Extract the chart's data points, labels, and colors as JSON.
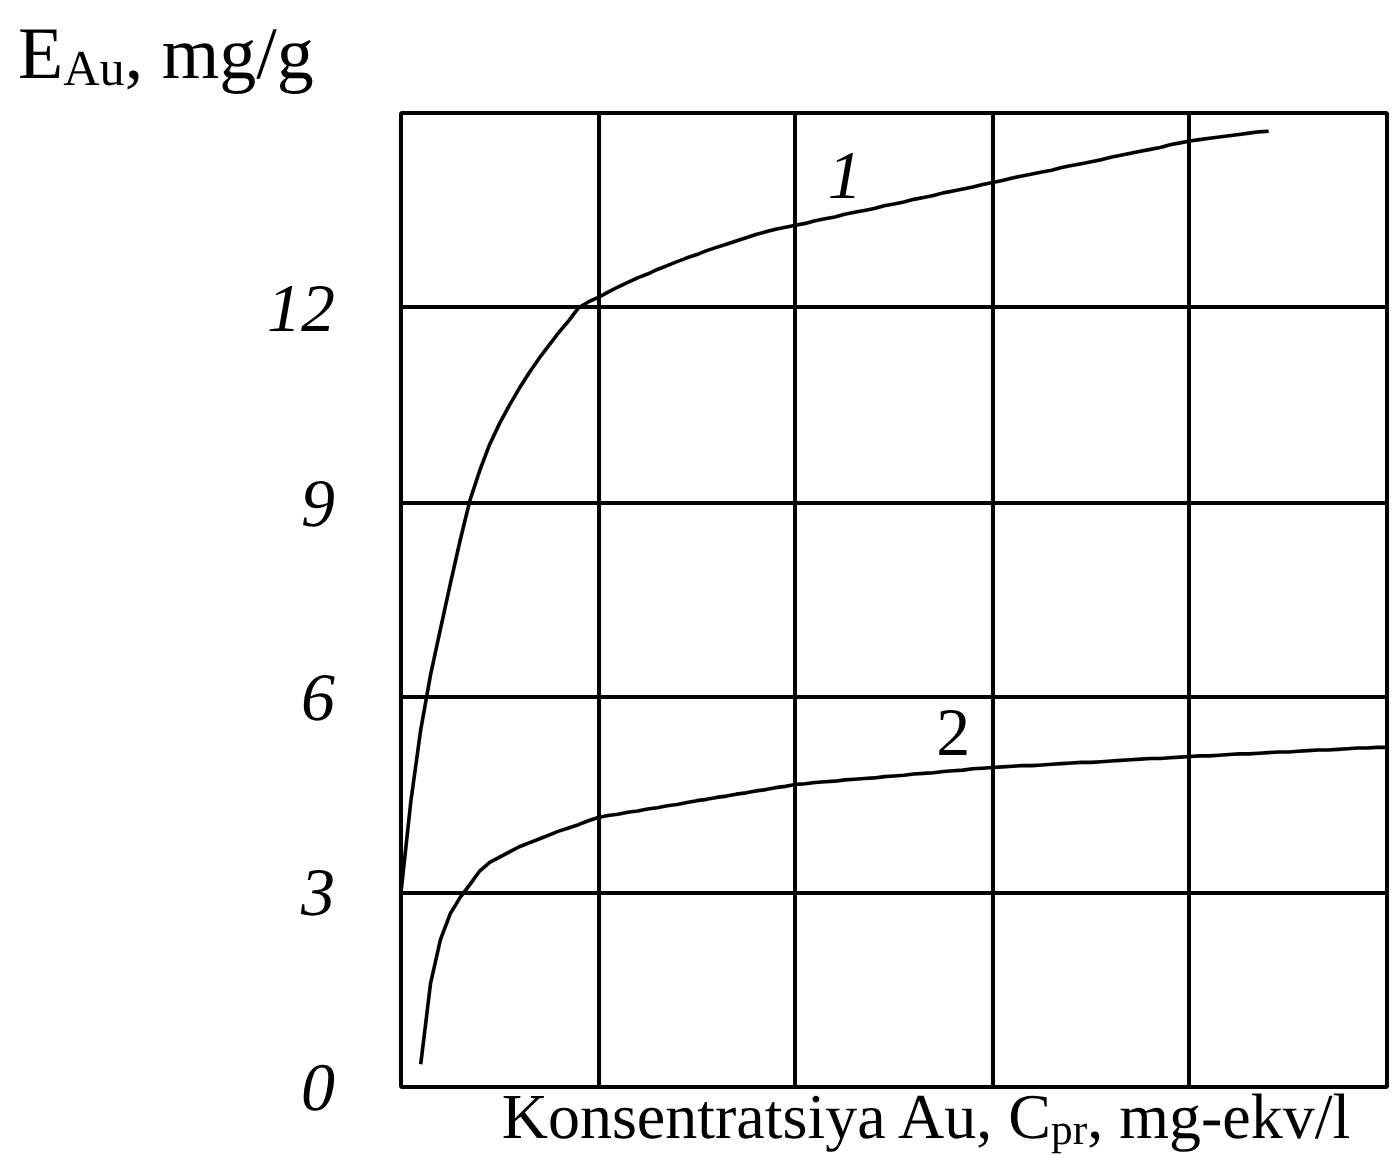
{
  "chart_data": {
    "type": "line",
    "xlabel": "Konsentratsiya Au, C$_{pr}$, mg-ekv/l",
    "ylabel": "E$_{Au}$, mg/g",
    "categories": [
      null,
      null,
      null,
      null,
      null,
      null,
      null,
      null,
      null,
      null,
      null,
      null,
      null,
      null,
      null,
      null,
      null,
      null,
      null,
      null,
      null,
      null,
      null,
      null,
      null,
      null,
      null,
      null,
      null,
      null,
      null,
      null,
      null,
      null,
      null,
      null,
      null,
      null,
      null,
      null,
      null,
      null,
      null,
      null,
      null,
      null,
      null,
      null,
      null,
      null,
      null,
      null,
      null,
      null,
      null,
      null,
      null,
      null,
      null,
      null,
      null,
      null,
      null,
      null,
      null,
      null,
      null,
      null,
      null,
      null,
      null,
      null,
      null,
      null,
      null,
      null,
      null,
      null,
      null,
      null,
      null,
      null,
      null,
      null,
      null,
      null,
      null,
      null,
      null,
      null,
      null,
      null,
      null,
      null,
      null,
      null,
      null,
      null,
      null,
      null,
      null
    ],
    "ylim": [
      0,
      15
    ],
    "yticks": [
      0,
      3,
      6,
      9,
      12
    ],
    "grid": true,
    "tick_labels": "y",
    "series": [
      {
        "name": "1",
        "color": "#000000",
        "values": [
          3.0,
          4.4,
          5.5,
          6.35,
          7.05,
          7.75,
          8.42,
          9.04,
          9.5,
          9.9,
          10.22,
          10.5,
          10.76,
          11.0,
          11.22,
          11.42,
          11.62,
          11.8,
          12.0,
          12.09,
          12.16,
          12.24,
          12.32,
          12.39,
          12.46,
          12.52,
          12.59,
          12.65,
          12.71,
          12.77,
          12.82,
          12.88,
          12.93,
          12.98,
          13.03,
          13.08,
          13.13,
          13.17,
          13.21,
          13.24,
          13.27,
          13.3,
          13.34,
          13.37,
          13.4,
          13.44,
          13.47,
          13.5,
          13.53,
          13.57,
          13.6,
          13.63,
          13.67,
          13.7,
          13.73,
          13.77,
          13.8,
          13.83,
          13.86,
          13.9,
          13.93,
          13.96,
          14.0,
          14.03,
          14.06,
          14.09,
          14.12,
          14.16,
          14.19,
          14.22,
          14.25,
          14.28,
          14.32,
          14.35,
          14.38,
          14.41,
          14.44,
          14.47,
          14.51,
          14.54,
          14.57,
          14.59,
          14.61,
          14.63,
          14.65,
          14.67,
          14.69,
          14.71,
          14.72,
          null,
          null,
          null,
          null,
          null,
          null,
          null,
          null,
          null,
          null,
          null,
          null
        ]
      },
      {
        "name": "2",
        "color": "#000000",
        "values": [
          null,
          null,
          0.35,
          1.6,
          2.27,
          2.67,
          2.92,
          3.12,
          3.33,
          3.46,
          3.54,
          3.62,
          3.7,
          3.76,
          3.82,
          3.88,
          3.94,
          3.99,
          4.04,
          4.1,
          4.15,
          4.18,
          4.2,
          4.23,
          4.25,
          4.28,
          4.3,
          4.33,
          4.35,
          4.38,
          4.41,
          4.43,
          4.46,
          4.48,
          4.51,
          4.53,
          4.56,
          4.58,
          4.61,
          4.63,
          4.66,
          4.67,
          4.69,
          4.7,
          4.71,
          4.73,
          4.74,
          4.75,
          4.76,
          4.78,
          4.79,
          4.8,
          4.82,
          4.83,
          4.84,
          4.86,
          4.87,
          4.88,
          4.9,
          4.91,
          4.92,
          4.93,
          4.94,
          4.95,
          4.95,
          4.96,
          4.97,
          4.98,
          4.99,
          5.0,
          5.0,
          5.01,
          5.02,
          5.03,
          5.04,
          5.05,
          5.06,
          5.06,
          5.07,
          5.08,
          5.09,
          5.1,
          5.1,
          5.11,
          5.12,
          5.13,
          5.13,
          5.14,
          5.15,
          5.16,
          5.16,
          5.17,
          5.18,
          5.19,
          5.19,
          5.2,
          5.21,
          5.22,
          5.22,
          5.23,
          5.23
        ]
      }
    ]
  }
}
